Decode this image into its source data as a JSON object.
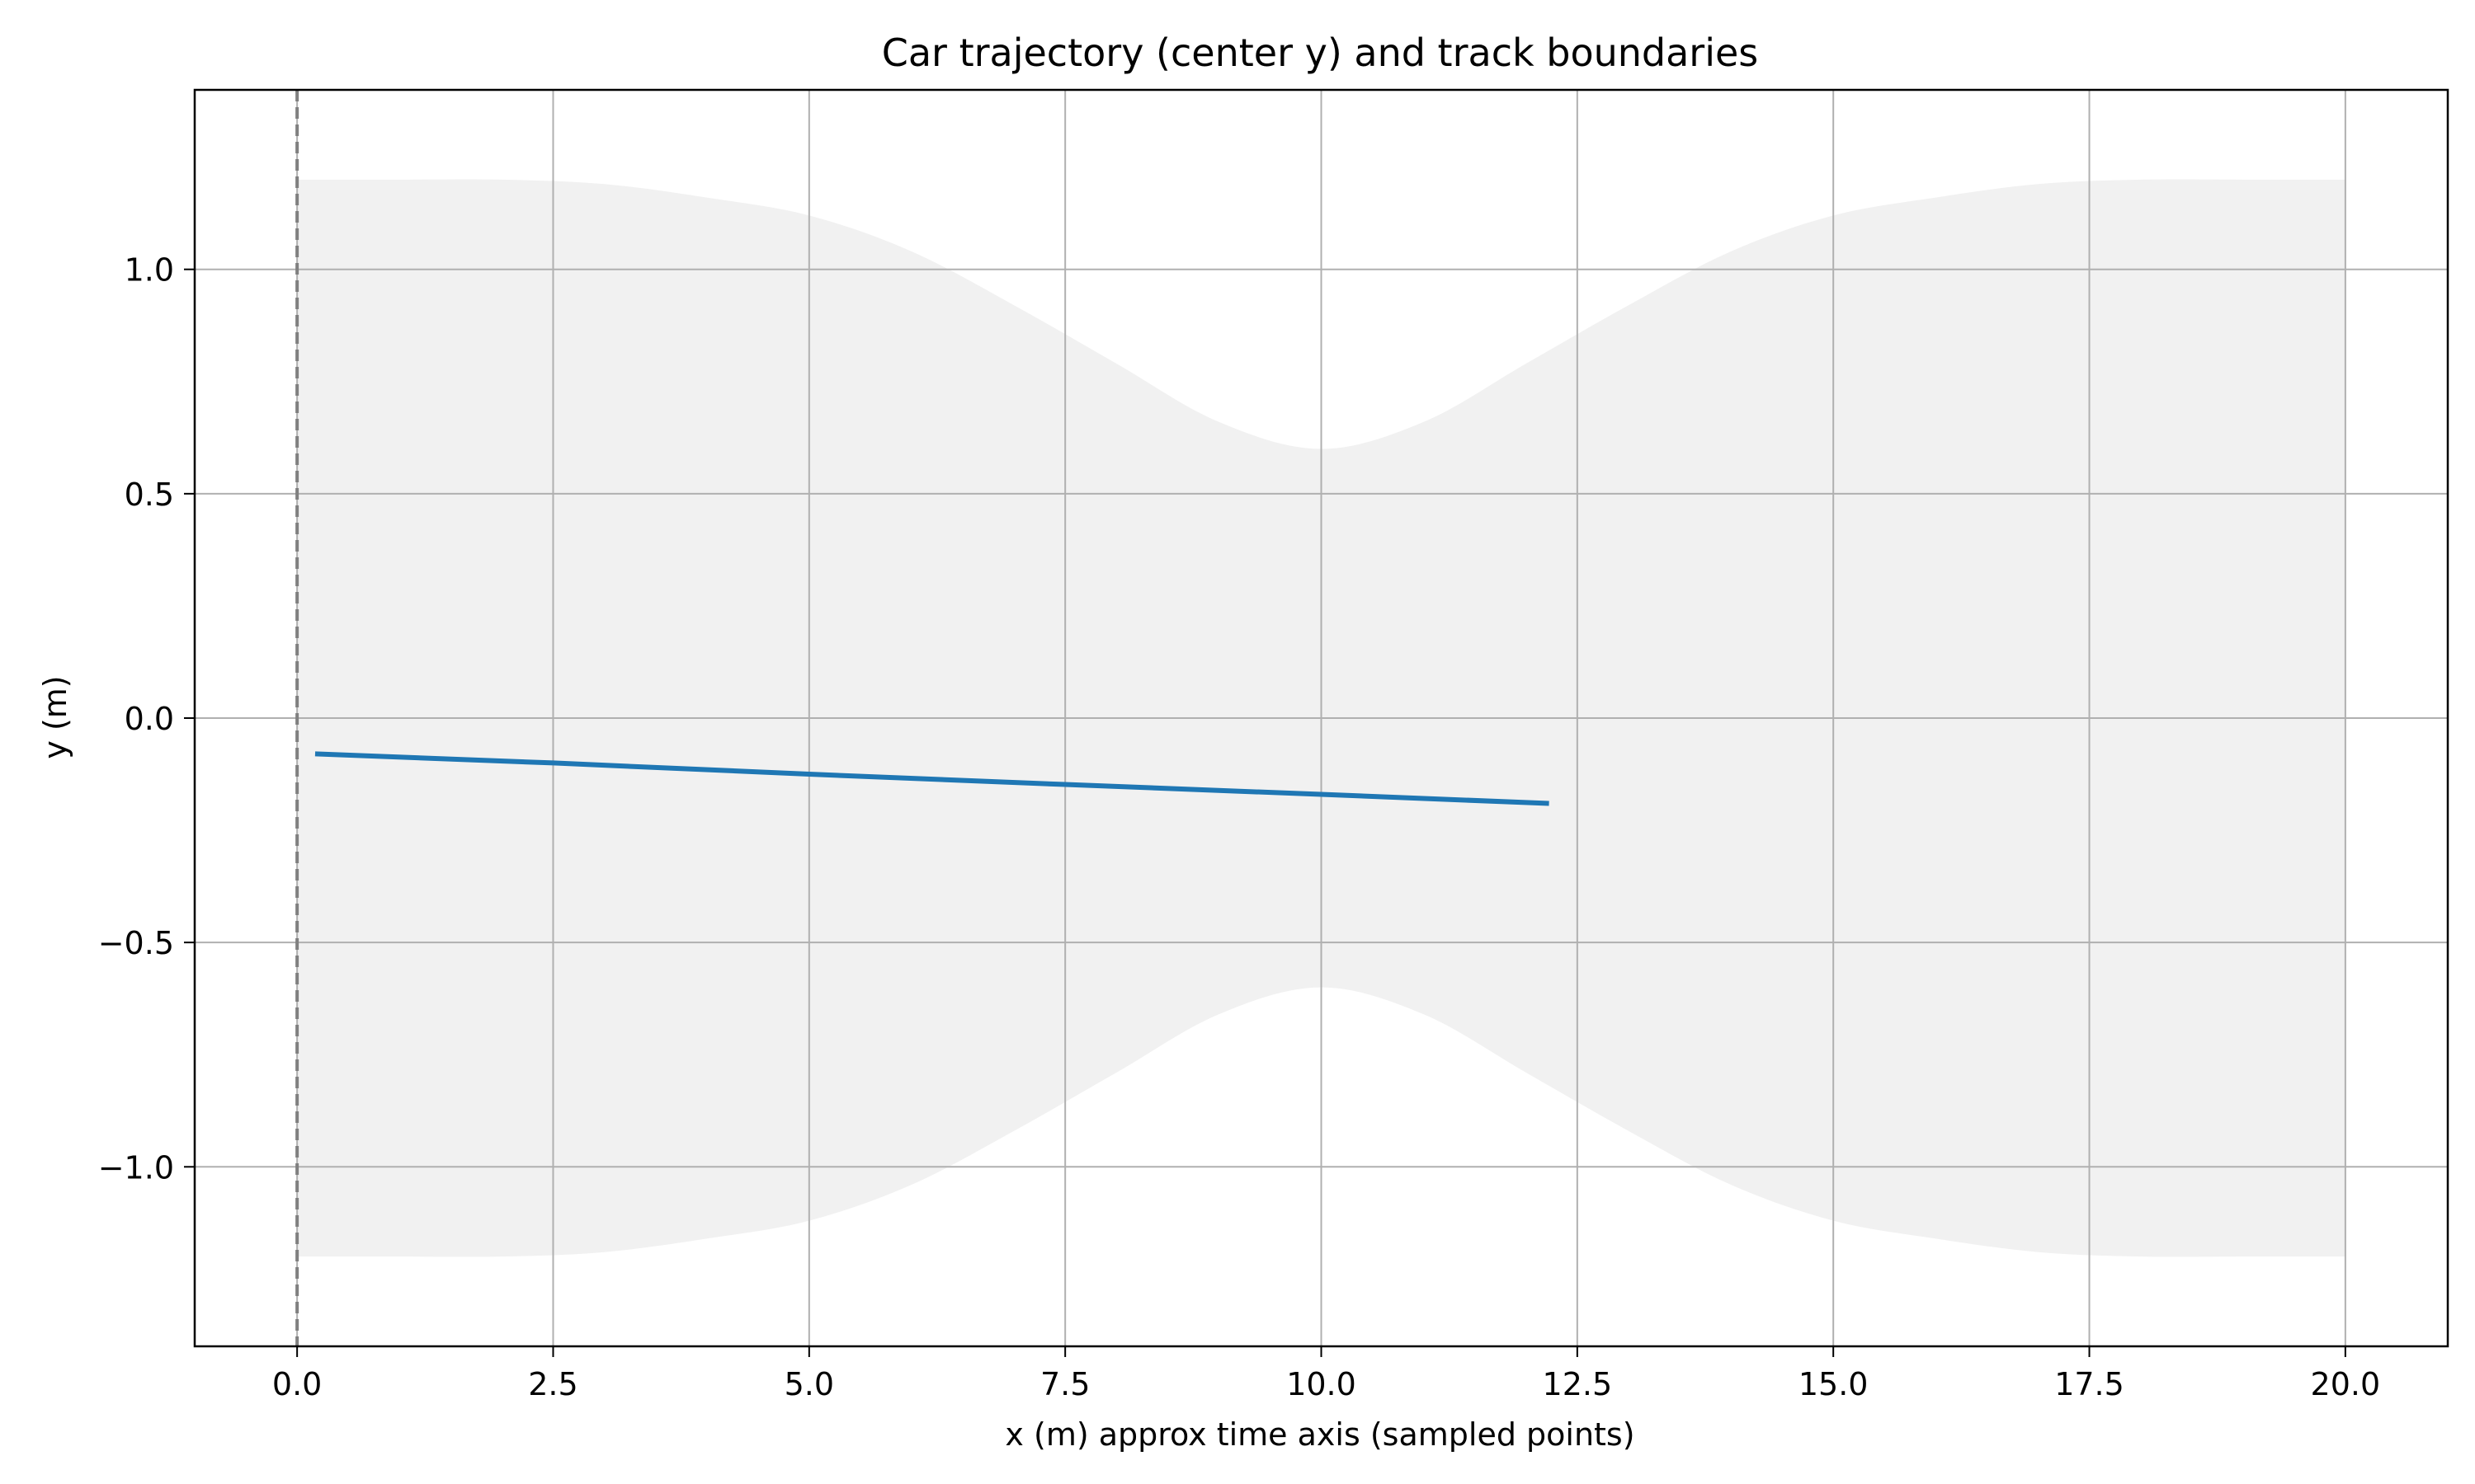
{
  "chart_data": {
    "type": "line",
    "title": "Car trajectory (center y) and track boundaries",
    "xlabel": "x (m) approx time axis (sampled points)",
    "ylabel": "y (m)",
    "xlim": [
      -1.0,
      21.0
    ],
    "ylim": [
      -1.4,
      1.4
    ],
    "x_ticks": [
      {
        "value": 0.0,
        "label": "0.0"
      },
      {
        "value": 2.5,
        "label": "2.5"
      },
      {
        "value": 5.0,
        "label": "5.0"
      },
      {
        "value": 7.5,
        "label": "7.5"
      },
      {
        "value": 10.0,
        "label": "10.0"
      },
      {
        "value": 12.5,
        "label": "12.5"
      },
      {
        "value": 15.0,
        "label": "15.0"
      },
      {
        "value": 17.5,
        "label": "17.5"
      },
      {
        "value": 20.0,
        "label": "20.0"
      }
    ],
    "y_ticks": [
      {
        "value": -1.0,
        "label": "−1.0"
      },
      {
        "value": -0.5,
        "label": "−0.5"
      },
      {
        "value": 0.0,
        "label": "0.0"
      },
      {
        "value": 0.5,
        "label": "0.5"
      },
      {
        "value": 1.0,
        "label": "1.0"
      }
    ],
    "grid": true,
    "vertical_reference_line": {
      "x": 0.0,
      "style": "dashed",
      "color": "#808080"
    },
    "track_band": {
      "color": "#f1f1f1",
      "x": [
        0,
        1,
        2,
        3,
        4,
        5,
        6,
        7,
        8,
        9,
        10,
        11,
        12,
        13,
        14,
        15,
        16,
        17,
        18,
        19,
        20
      ],
      "upper": [
        1.2,
        1.2,
        1.2,
        1.19,
        1.16,
        1.12,
        1.04,
        0.92,
        0.79,
        0.66,
        0.6,
        0.66,
        0.79,
        0.92,
        1.04,
        1.12,
        1.16,
        1.19,
        1.2,
        1.2,
        1.2
      ],
      "lower": [
        -1.2,
        -1.2,
        -1.2,
        -1.19,
        -1.16,
        -1.12,
        -1.04,
        -0.92,
        -0.79,
        -0.66,
        -0.6,
        -0.66,
        -0.79,
        -0.92,
        -1.04,
        -1.12,
        -1.16,
        -1.19,
        -1.2,
        -1.2,
        -1.2
      ]
    },
    "series": [
      {
        "color": "#1f77b4",
        "x": [
          0.2,
          2.5,
          5.0,
          7.5,
          10.0,
          12.2
        ],
        "y": [
          -0.08,
          -0.1,
          -0.125,
          -0.148,
          -0.17,
          -0.19
        ]
      }
    ]
  }
}
